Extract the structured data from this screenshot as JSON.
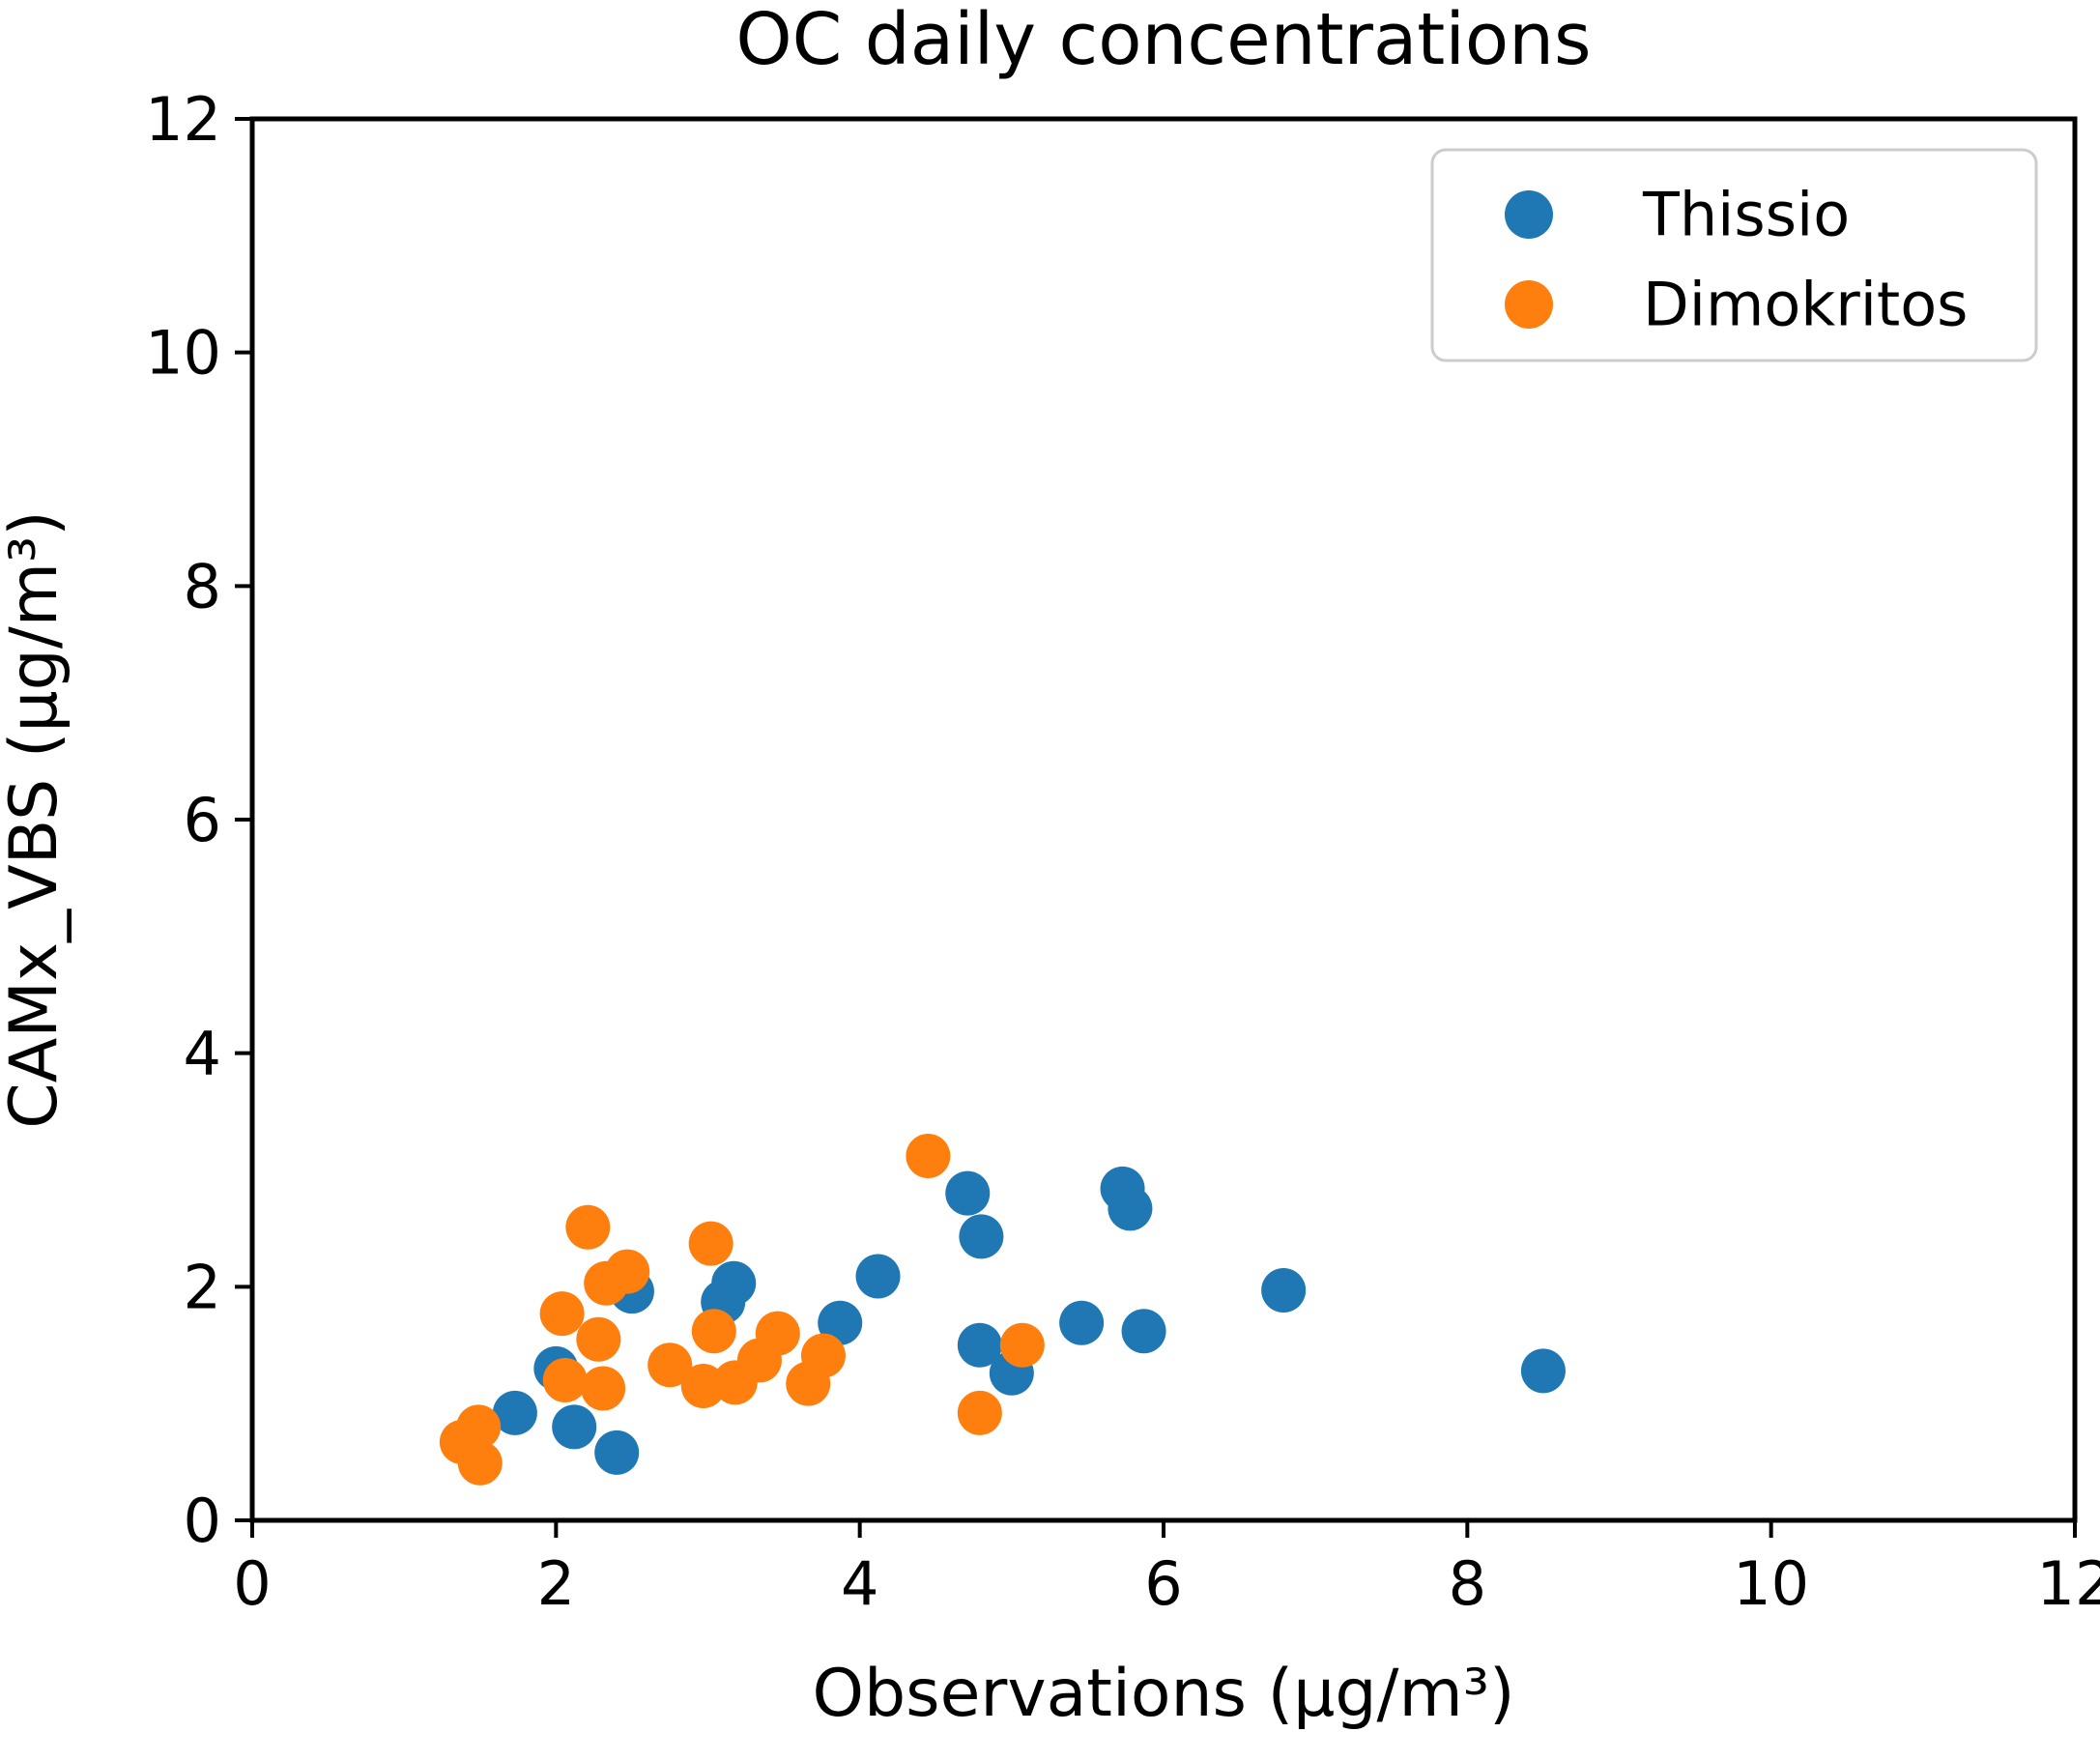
{
  "chart_data": {
    "type": "scatter",
    "title": "OC daily concentrations",
    "xlabel": "Observations (μg/m³)",
    "ylabel": "CAMx_VBS (μg/m³)",
    "xlim": [
      0,
      12
    ],
    "ylim": [
      0,
      12
    ],
    "x_ticks": [
      0,
      2,
      4,
      6,
      8,
      10,
      12
    ],
    "y_ticks": [
      0,
      2,
      4,
      6,
      8,
      10,
      12
    ],
    "grid": false,
    "legend_position": "upper right",
    "marker": "circle",
    "series": [
      {
        "name": "Thissio",
        "color": "#1f77b4",
        "points": [
          [
            1.73,
            0.92
          ],
          [
            2.0,
            1.3
          ],
          [
            2.12,
            0.8
          ],
          [
            2.4,
            0.58
          ],
          [
            2.5,
            1.96
          ],
          [
            3.1,
            1.87
          ],
          [
            3.17,
            2.03
          ],
          [
            3.87,
            1.69
          ],
          [
            4.12,
            2.09
          ],
          [
            4.71,
            2.8
          ],
          [
            4.8,
            2.43
          ],
          [
            4.79,
            1.5
          ],
          [
            5.0,
            1.26
          ],
          [
            5.46,
            1.69
          ],
          [
            5.73,
            2.84
          ],
          [
            5.78,
            2.67
          ],
          [
            5.87,
            1.62
          ],
          [
            6.79,
            1.97
          ],
          [
            8.5,
            1.28
          ]
        ]
      },
      {
        "name": "Dimokritos",
        "color": "#ff7f0e",
        "points": [
          [
            1.38,
            0.67
          ],
          [
            1.49,
            0.8
          ],
          [
            1.5,
            0.49
          ],
          [
            2.04,
            1.77
          ],
          [
            2.06,
            1.2
          ],
          [
            2.21,
            2.51
          ],
          [
            2.28,
            1.55
          ],
          [
            2.31,
            1.13
          ],
          [
            2.33,
            2.03
          ],
          [
            2.47,
            2.13
          ],
          [
            2.75,
            1.33
          ],
          [
            2.97,
            1.15
          ],
          [
            3.02,
            2.37
          ],
          [
            3.04,
            1.62
          ],
          [
            3.18,
            1.18
          ],
          [
            3.34,
            1.37
          ],
          [
            3.46,
            1.6
          ],
          [
            3.66,
            1.17
          ],
          [
            3.76,
            1.41
          ],
          [
            4.45,
            3.12
          ],
          [
            4.79,
            0.92
          ],
          [
            5.07,
            1.5
          ]
        ]
      }
    ]
  },
  "legend": {
    "items": [
      {
        "label": "Thissio",
        "color": "#1f77b4"
      },
      {
        "label": "Dimokritos",
        "color": "#ff7f0e"
      }
    ]
  }
}
